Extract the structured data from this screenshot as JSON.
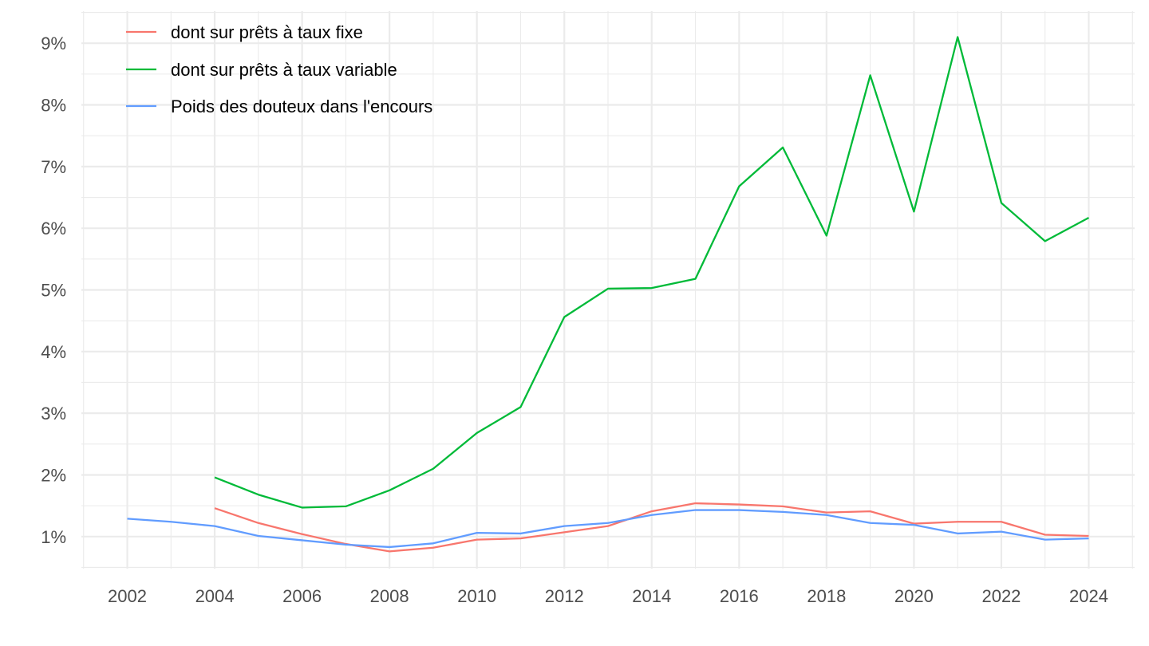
{
  "chart_data": {
    "type": "line",
    "title": "",
    "xlabel": "",
    "ylabel": "",
    "x": [
      2002,
      2003,
      2004,
      2005,
      2006,
      2007,
      2008,
      2009,
      2010,
      2011,
      2012,
      2013,
      2014,
      2015,
      2016,
      2017,
      2018,
      2019,
      2020,
      2021,
      2022,
      2023,
      2024
    ],
    "xlim": [
      2000.95,
      2025.05
    ],
    "ylim": [
      0.48,
      9.52
    ],
    "x_ticks": [
      2002,
      2004,
      2006,
      2008,
      2010,
      2012,
      2014,
      2016,
      2018,
      2020,
      2022,
      2024
    ],
    "x_tick_labels": [
      "2002",
      "2004",
      "2006",
      "2008",
      "2010",
      "2012",
      "2014",
      "2016",
      "2018",
      "2020",
      "2022",
      "2024"
    ],
    "y_ticks": [
      1,
      2,
      3,
      4,
      5,
      6,
      7,
      8,
      9
    ],
    "y_tick_labels": [
      "1%",
      "2%",
      "3%",
      "4%",
      "5%",
      "6%",
      "7%",
      "8%",
      "9%"
    ],
    "grid": true,
    "legend_position": "top-left",
    "series": [
      {
        "name": "dont sur prêts à taux fixe",
        "color": "#F8766D",
        "values": [
          null,
          null,
          1.46,
          1.22,
          1.04,
          0.88,
          0.76,
          0.82,
          0.95,
          0.97,
          1.07,
          1.17,
          1.41,
          1.54,
          1.52,
          1.49,
          1.39,
          1.41,
          1.21,
          1.24,
          1.24,
          1.03,
          1.01
        ]
      },
      {
        "name": "dont sur prêts à taux variable",
        "color": "#00BA38",
        "values": [
          null,
          null,
          1.96,
          1.68,
          1.47,
          1.49,
          1.75,
          2.1,
          2.68,
          3.1,
          4.56,
          5.02,
          5.03,
          5.18,
          6.68,
          7.31,
          5.88,
          8.48,
          6.27,
          9.1,
          6.41,
          5.79,
          6.17
        ]
      },
      {
        "name": "Poids des douteux dans l'encours",
        "color": "#619CFF",
        "values": [
          1.29,
          1.24,
          1.17,
          1.01,
          0.94,
          0.87,
          0.83,
          0.89,
          1.06,
          1.05,
          1.17,
          1.22,
          1.35,
          1.43,
          1.43,
          1.4,
          1.35,
          1.22,
          1.19,
          1.05,
          1.08,
          0.95,
          0.97
        ]
      }
    ]
  }
}
